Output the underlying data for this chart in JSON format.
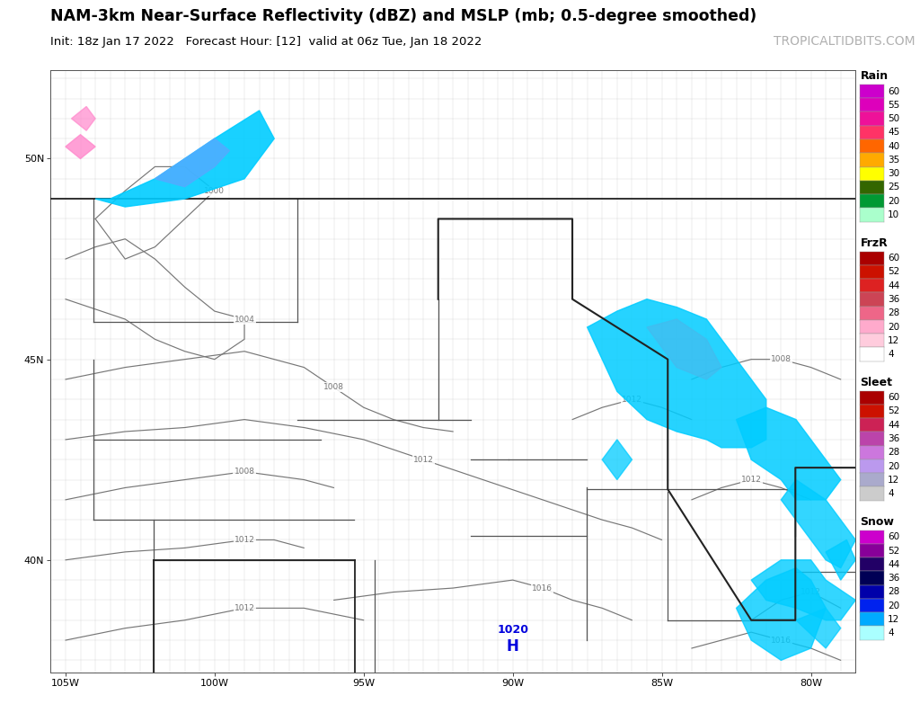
{
  "title_line1": "NAM-3km Near-Surface Reflectivity (dBZ) and MSLP (mb; 0.5-degree smoothed)",
  "title_line2": "Init: 18z Jan 17 2022   Forecast Hour: [12]  valid at 06z Tue, Jan 18 2022",
  "watermark": "TROPICALTIDBITS.COM",
  "background_color": "#ffffff",
  "fig_width": 10.24,
  "fig_height": 7.83,
  "rain_label": "Rain",
  "rain_levels": [
    60,
    55,
    50,
    45,
    40,
    35,
    30,
    25,
    20,
    10
  ],
  "rain_colors": [
    "#cc00cc",
    "#dd00bb",
    "#ee1199",
    "#ff3366",
    "#ff6600",
    "#ffaa00",
    "#ffff00",
    "#336600",
    "#009933",
    "#aaffcc"
  ],
  "frzr_label": "FrzR",
  "frzr_levels": [
    60,
    52,
    44,
    36,
    28,
    20,
    12,
    4
  ],
  "frzr_colors": [
    "#aa0000",
    "#cc1100",
    "#dd2222",
    "#cc4455",
    "#ee6688",
    "#ffaacc",
    "#ffccdd",
    "#ffffff"
  ],
  "sleet_label": "Sleet",
  "sleet_levels": [
    60,
    52,
    44,
    36,
    28,
    20,
    12,
    4
  ],
  "sleet_colors": [
    "#aa0000",
    "#cc1100",
    "#cc2255",
    "#bb44aa",
    "#cc77dd",
    "#bb99ee",
    "#aaaacc",
    "#cccccc"
  ],
  "snow_label": "Snow",
  "snow_levels": [
    60,
    52,
    44,
    36,
    28,
    20,
    12,
    4
  ],
  "snow_colors": [
    "#cc00cc",
    "#880099",
    "#220066",
    "#000055",
    "#0000aa",
    "#0022ee",
    "#00aaff",
    "#aaffff"
  ],
  "lon_min": -105.5,
  "lon_max": -78.5,
  "lat_min": 37.2,
  "lat_max": 52.2,
  "lon_ticks": [
    -105,
    -100,
    -95,
    -90,
    -85,
    -80
  ],
  "lat_ticks": [
    40,
    45,
    50
  ],
  "map_bg": "#ffffff",
  "county_color": "#cccccc",
  "state_color": "#555555",
  "border_color": "#222222",
  "contour_color": "#777777",
  "title_fontsize": 12.5,
  "subtitle_fontsize": 9.5,
  "watermark_fontsize": 10,
  "tick_fontsize": 8,
  "contour_label_fontsize": 6.5,
  "legend_title_fontsize": 9,
  "legend_label_fontsize": 7.5
}
